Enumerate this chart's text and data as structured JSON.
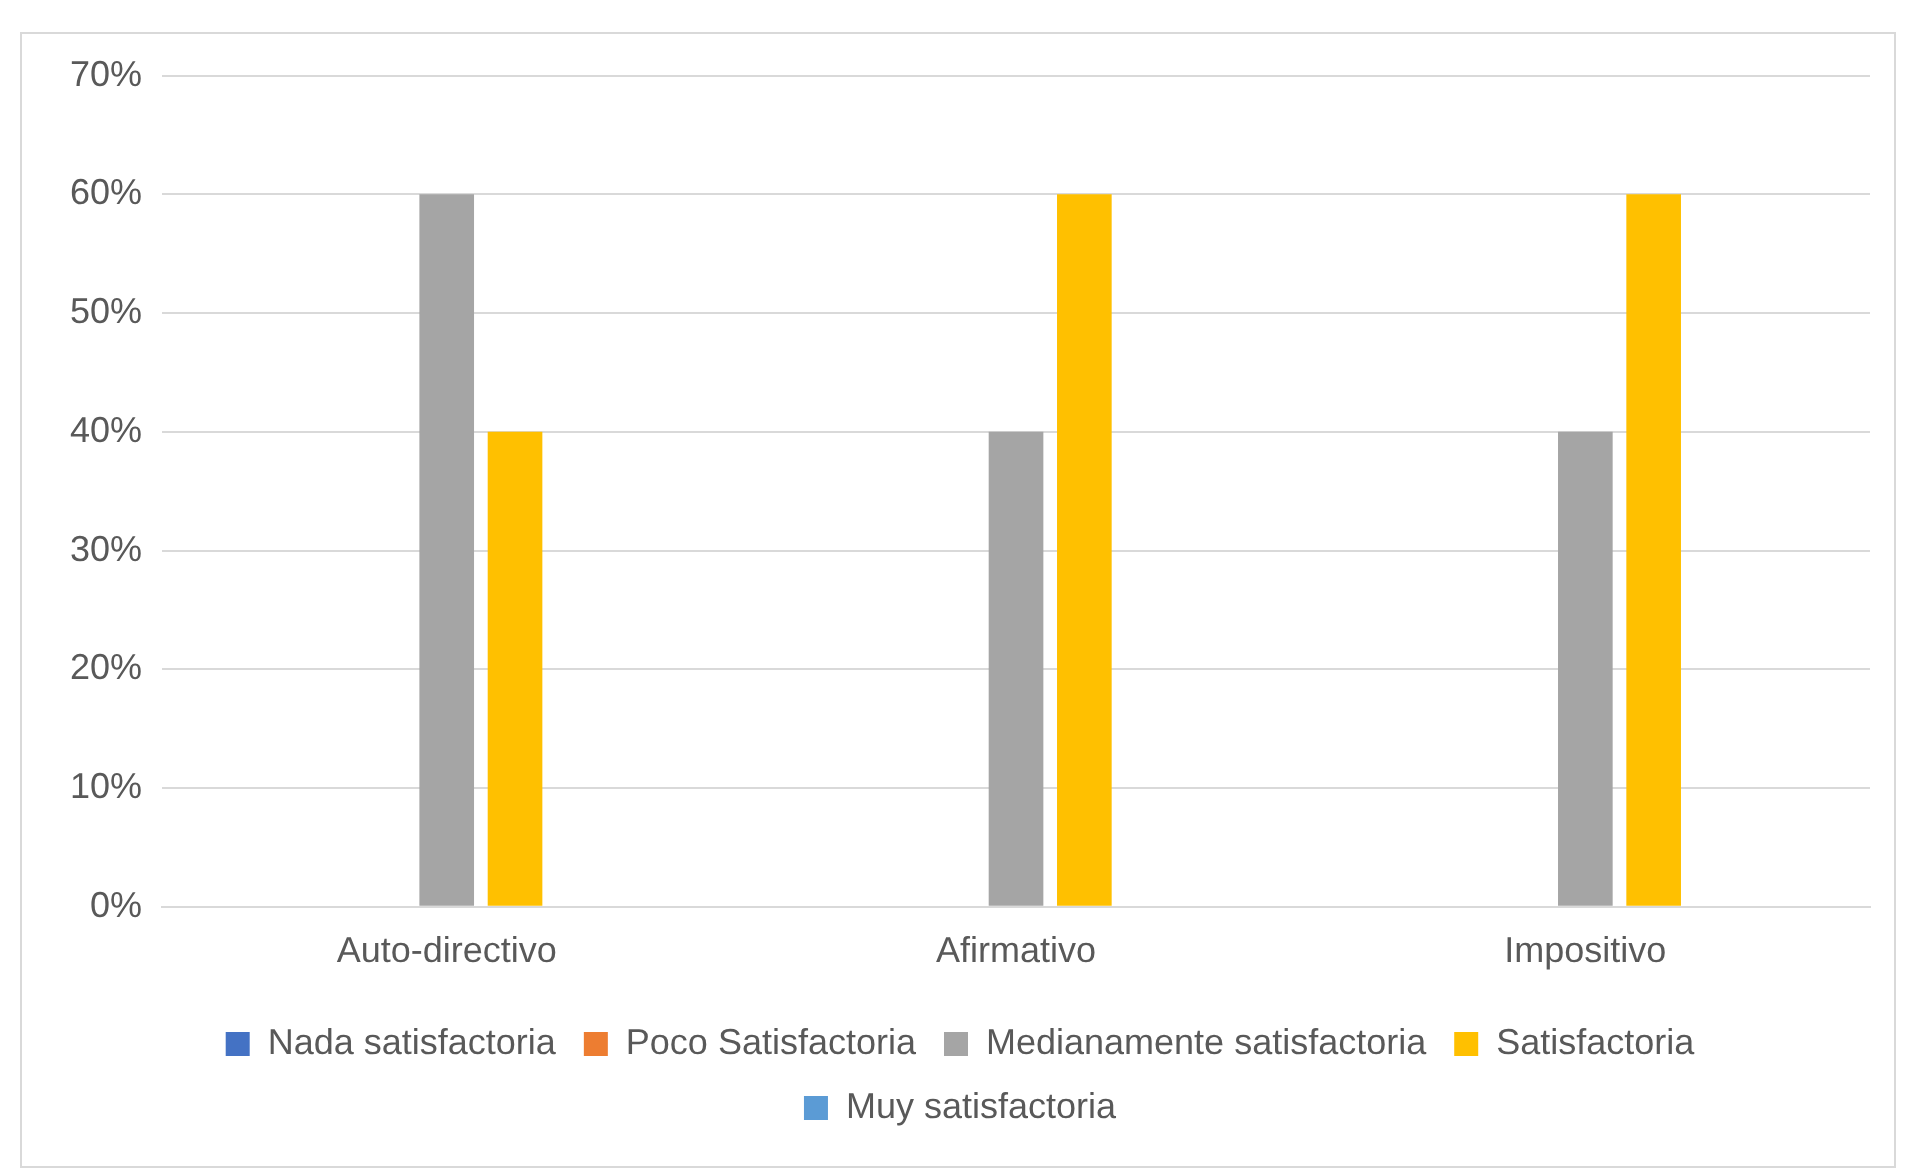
{
  "chart_data": {
    "type": "bar",
    "categories": [
      "Auto-directivo",
      "Afirmativo",
      "Impositivo"
    ],
    "series": [
      {
        "name": "Nada satisfactoria",
        "color": "#4472c4",
        "values": [
          0,
          0,
          0
        ]
      },
      {
        "name": "Poco Satisfactoria",
        "color": "#ed7d31",
        "values": [
          0,
          0,
          0
        ]
      },
      {
        "name": "Medianamente satisfactoria",
        "color": "#a5a5a5",
        "values": [
          60,
          40,
          40
        ]
      },
      {
        "name": "Satisfactoria",
        "color": "#ffc000",
        "values": [
          40,
          60,
          60
        ]
      },
      {
        "name": "Muy satisfactoria",
        "color": "#5b9bd5",
        "values": [
          0,
          0,
          0
        ]
      }
    ],
    "ylim": [
      0,
      70
    ],
    "yticks": [
      {
        "value": 0,
        "label": "0%"
      },
      {
        "value": 10,
        "label": "10%"
      },
      {
        "value": 20,
        "label": "20%"
      },
      {
        "value": 30,
        "label": "30%"
      },
      {
        "value": 40,
        "label": "40%"
      },
      {
        "value": 50,
        "label": "50%"
      },
      {
        "value": 60,
        "label": "60%"
      },
      {
        "value": 70,
        "label": "70%"
      }
    ],
    "grid": "y",
    "legend": "bottom"
  }
}
